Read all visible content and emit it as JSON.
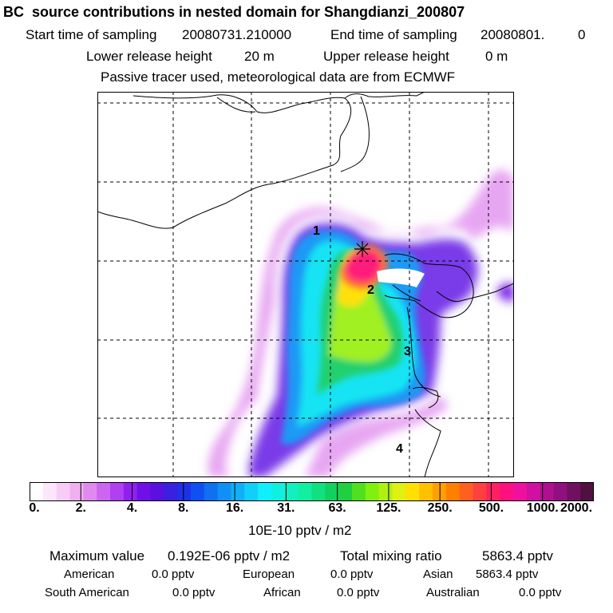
{
  "header": {
    "title": "BC  source contributions in nested domain for Shangdianzi_200807",
    "start_label": "Start time of sampling",
    "start_value": "20080731.210000",
    "end_label": "End time of sampling",
    "end_value": "20080801.",
    "end_value_2": "0",
    "lower_label": "Lower release height",
    "lower_value": "20 m",
    "upper_label": "Upper release height",
    "upper_value": "0 m",
    "tracer_note": "Passive tracer used, meteorological data are from ECMWF"
  },
  "map": {
    "region_labels": [
      "1",
      "2",
      "3",
      "4"
    ],
    "receptor_marker": "star-icon"
  },
  "colorbar": {
    "tick_labels": [
      "0.",
      "2.",
      "4.",
      "8.",
      "16.",
      "31.",
      "63.",
      "125.",
      "250.",
      "500.",
      "1000.",
      "2000."
    ],
    "unit_label": "10E-10 pptv / m2",
    "colors": [
      "#ffffff",
      "#fde6fb",
      "#f8ccf5",
      "#f0b0f0",
      "#e08af0",
      "#cc66f0",
      "#b040f0",
      "#9020f0",
      "#7010e8",
      "#5a10e0",
      "#3a20e0",
      "#2030e8",
      "#1050f0",
      "#1070f0",
      "#1090f4",
      "#10b0f8",
      "#10d0fa",
      "#10f0fc",
      "#10f0e0",
      "#10f0c0",
      "#10f0a0",
      "#10e080",
      "#10d060",
      "#20d040",
      "#50e020",
      "#80f010",
      "#b0f010",
      "#e0f010",
      "#ffe000",
      "#ffc000",
      "#ffa000",
      "#ff8000",
      "#ff6020",
      "#ff4040",
      "#ff2060",
      "#ff1080",
      "#f010a0",
      "#d010a0",
      "#b01090",
      "#901080",
      "#701060",
      "#501040"
    ]
  },
  "footer": {
    "max_label": "Maximum value",
    "max_value": "0.192E-06 pptv / m2",
    "total_label": "Total mixing ratio",
    "total_value": "5863.4 pptv",
    "row2": [
      {
        "label": "American",
        "value": "0.0 pptv"
      },
      {
        "label": "European",
        "value": "0.0 pptv"
      },
      {
        "label": "Asian",
        "value": "5863.4 pptv"
      }
    ],
    "row3": [
      {
        "label": "South American",
        "value": "0.0 pptv"
      },
      {
        "label": "African",
        "value": "0.0 pptv"
      },
      {
        "label": "Australian",
        "value": "0.0 pptv"
      }
    ]
  }
}
